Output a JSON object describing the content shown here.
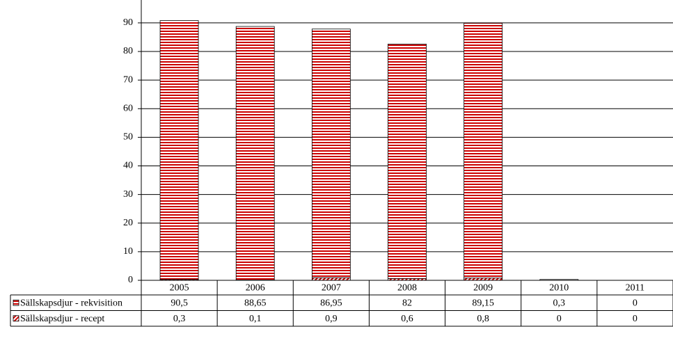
{
  "chart_data": {
    "type": "stacked-bar",
    "categories": [
      "2005",
      "2006",
      "2007",
      "2008",
      "2009",
      "2010",
      "2011"
    ],
    "series": [
      {
        "name": "Sällskapsdjur - recept",
        "color": "#cc0000",
        "pattern": "diagonal",
        "values": [
          0.3,
          0.1,
          0.9,
          0.6,
          0.8,
          0,
          0
        ],
        "value_labels": [
          "0,3",
          "0,1",
          "0,9",
          "0,6",
          "0,8",
          "0",
          "0"
        ]
      },
      {
        "name": "Sällskapsdjur - rekvisition",
        "color": "#cc0000",
        "pattern": "horizontal",
        "values": [
          90.5,
          88.65,
          86.95,
          82,
          89.15,
          0.3,
          0
        ],
        "value_labels": [
          "90,5",
          "88,65",
          "86,95",
          "82",
          "89,15",
          "0,3",
          "0"
        ]
      }
    ],
    "table_order": [
      1,
      0
    ],
    "ylim": [
      0,
      98
    ],
    "yticks": [
      0,
      10,
      20,
      30,
      40,
      50,
      60,
      70,
      80,
      90
    ],
    "grid": true
  }
}
